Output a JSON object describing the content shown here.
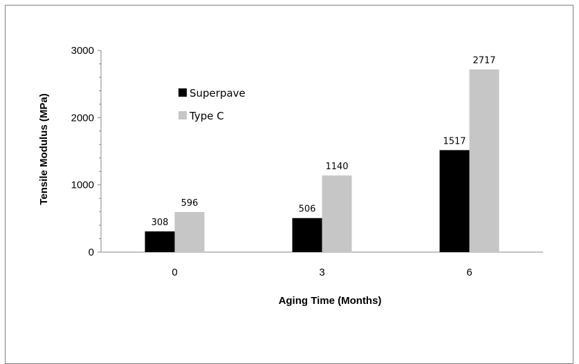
{
  "chart_data": {
    "type": "bar",
    "categories": [
      "0",
      "3",
      "6"
    ],
    "series": [
      {
        "name": "Superpave",
        "values": [
          308,
          506,
          1517
        ],
        "color": "#000000"
      },
      {
        "name": "Type C",
        "values": [
          596,
          1140,
          2717
        ],
        "color": "#c6c6c6"
      }
    ],
    "data_labels": [
      [
        "308",
        "506",
        "1517"
      ],
      [
        "596",
        "1140",
        "2717"
      ]
    ],
    "title": "",
    "xlabel": "Aging Time (Months)",
    "ylabel": "Tensile Modulus (MPa)",
    "ylim": [
      0,
      3000
    ],
    "yticks": [
      "0",
      "1000",
      "2000",
      "3000"
    ],
    "grid": false,
    "legend_position": "top-left"
  }
}
